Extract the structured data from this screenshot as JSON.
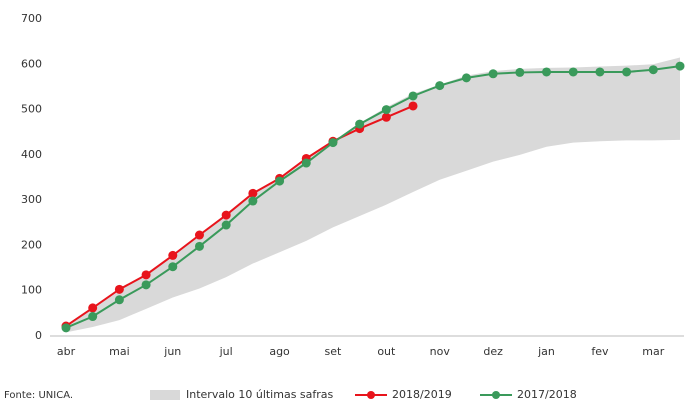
{
  "chart_data": {
    "type": "line",
    "categories": [
      "abr",
      null,
      "mai",
      null,
      "jun",
      null,
      "jul",
      null,
      "ago",
      null,
      "set",
      null,
      "out",
      null,
      "nov",
      null,
      "dez",
      null,
      "jan",
      null,
      "fev",
      null,
      "mar",
      null
    ],
    "ylim": [
      0,
      700
    ],
    "yticks": [
      0,
      100,
      200,
      300,
      400,
      500,
      600,
      700
    ],
    "band": {
      "name": "Intervalo 10 últimas safras",
      "color": "#d9d9d9",
      "lower": [
        8,
        20,
        35,
        60,
        85,
        105,
        130,
        160,
        185,
        210,
        240,
        265,
        290,
        318,
        345,
        365,
        385,
        400,
        418,
        427,
        430,
        432,
        432,
        433
      ],
      "upper": [
        25,
        60,
        100,
        135,
        178,
        223,
        267,
        315,
        350,
        390,
        430,
        470,
        505,
        535,
        555,
        575,
        585,
        590,
        592,
        593,
        595,
        597,
        600,
        615
      ]
    },
    "series": [
      {
        "name": "2018/2019",
        "color": "#e8141c",
        "values": [
          22,
          62,
          103,
          135,
          178,
          223,
          267,
          315,
          348,
          392,
          430,
          458,
          483,
          508,
          null,
          null,
          null,
          null,
          null,
          null,
          null,
          null,
          null,
          null
        ]
      },
      {
        "name": "2017/2018",
        "color": "#3a9a5b",
        "values": [
          18,
          43,
          80,
          113,
          153,
          198,
          245,
          298,
          342,
          382,
          427,
          468,
          500,
          530,
          553,
          570,
          579,
          582,
          583,
          583,
          583,
          583,
          588,
          596
        ]
      }
    ],
    "source": "Fonte: UNICA."
  }
}
